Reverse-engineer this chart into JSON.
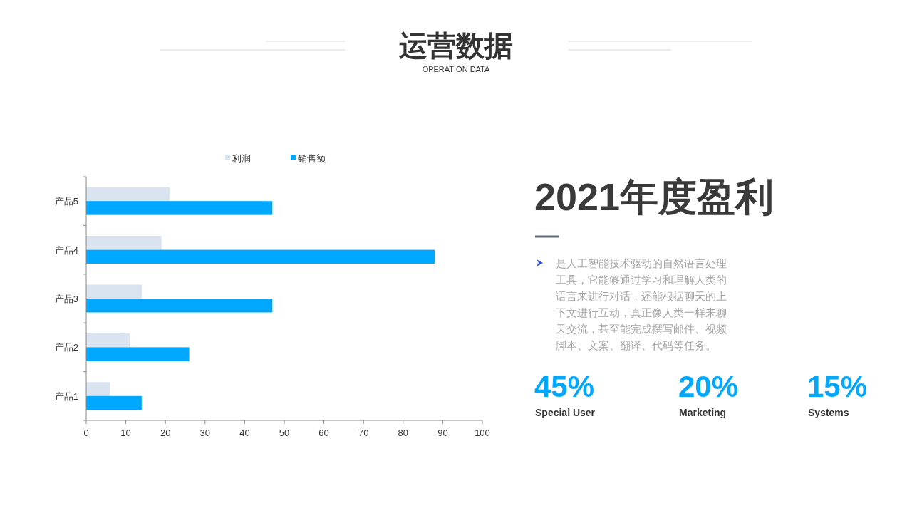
{
  "chart_data": [
    {
      "type": "bar",
      "title": "运营数据",
      "subtitle": "OPERATION DATA",
      "orientation": "horizontal",
      "categories": [
        "产品5",
        "产品4",
        "产品3",
        "产品2",
        "产品1"
      ],
      "series": [
        {
          "name": "利润",
          "color": "#dae3f0",
          "values": [
            21,
            19,
            14,
            11,
            6
          ]
        },
        {
          "name": "销售额",
          "color": "#00a8ff",
          "values": [
            47,
            88,
            47,
            26,
            14
          ]
        }
      ],
      "xlim": [
        0,
        100
      ],
      "xticks": [
        0,
        10,
        20,
        30,
        40,
        50,
        60,
        70,
        80,
        90,
        100
      ],
      "legend": "top",
      "grid": false
    },
    {
      "type": "other",
      "title": "2021年度盈利",
      "annotations": [
        "是人工智能技术驱动的自然语言处理工具，它能够通过学习和理解人类的语言来进行对话，还能根据聊天的上下文进行互动，真正像人类一样来聊天交流，甚至能完成撰写邮件、视频脚本、文案、翻译、代码等任务。",
        "45%",
        "Special User",
        "20%",
        "Marketing",
        "15%",
        "Systems"
      ]
    }
  ]
}
